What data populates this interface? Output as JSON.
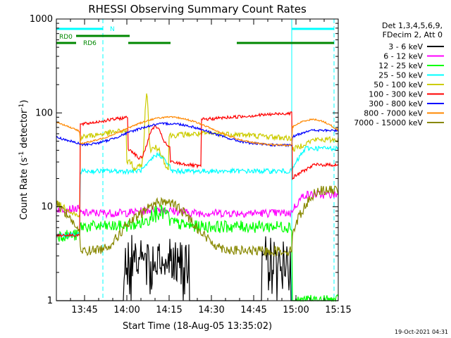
{
  "chart_data": {
    "type": "line",
    "title": "RHESSI Observing Summary Count Rates",
    "xlabel": "Start Time (18-Aug-05 13:35:02)",
    "ylabel_main": "Count Rate (s",
    "ylabel_sup1": "-1",
    "ylabel_mid": " detector",
    "ylabel_sup2": "-1",
    "ylabel_end": ")",
    "yscale": "log",
    "ylim": [
      1,
      1000
    ],
    "xlim_min": [
      0,
      100
    ],
    "x_unit": "minutes after 13:35:02",
    "x_ticks": [
      {
        "min": 10,
        "label": "13:45"
      },
      {
        "min": 25,
        "label": "14:00"
      },
      {
        "min": 40,
        "label": "14:15"
      },
      {
        "min": 55,
        "label": "14:30"
      },
      {
        "min": 70,
        "label": "14:45"
      },
      {
        "min": 85,
        "label": "15:00"
      },
      {
        "min": 100,
        "label": "15:15"
      }
    ],
    "y_ticks": [
      {
        "v": 1,
        "label": "1"
      },
      {
        "v": 10,
        "label": "10"
      },
      {
        "v": 100,
        "label": "100"
      },
      {
        "v": 1000,
        "label": "1000"
      }
    ],
    "legend": {
      "placement": "right",
      "header": [
        "Det 1,3,4,5,6,9,",
        "FDecim 2, Att 0"
      ],
      "entries": [
        {
          "label": "3 - 6 keV",
          "color": "#000000"
        },
        {
          "label": "6 - 12 keV",
          "color": "#ff00ff"
        },
        {
          "label": "12 - 25 keV",
          "color": "#00ff00"
        },
        {
          "label": "25 - 50 keV",
          "color": "#00ffff"
        },
        {
          "label": "50 - 100 keV",
          "color": "#cccc00"
        },
        {
          "label": "100 - 300 keV",
          "color": "#ff0000"
        },
        {
          "label": "300 - 800 keV",
          "color": "#0000ff"
        },
        {
          "label": "800 - 7000 keV",
          "color": "#ff8800"
        },
        {
          "label": "7000 - 15000 keV",
          "color": "#888800"
        }
      ]
    },
    "flags": [
      {
        "label": "N",
        "color": "#00ffff",
        "y_frac": 0.035,
        "segments": [
          [
            0,
            16.5
          ],
          [
            83.5,
            98.5
          ]
        ]
      },
      {
        "label": "RD0",
        "color": "#008800",
        "y_frac": 0.06,
        "segments": [
          [
            7,
            26
          ]
        ]
      },
      {
        "label": "RD6",
        "color": "#008800",
        "y_frac": 0.085,
        "segments": [
          [
            0,
            7
          ],
          [
            25.5,
            40.5
          ],
          [
            64,
            98.5
          ]
        ]
      }
    ],
    "vlines_solid": [
      0,
      83.5
    ],
    "vlines_dashed": [
      16.5,
      98.5
    ],
    "timestamp": "19-Oct-2021 04:31"
  }
}
